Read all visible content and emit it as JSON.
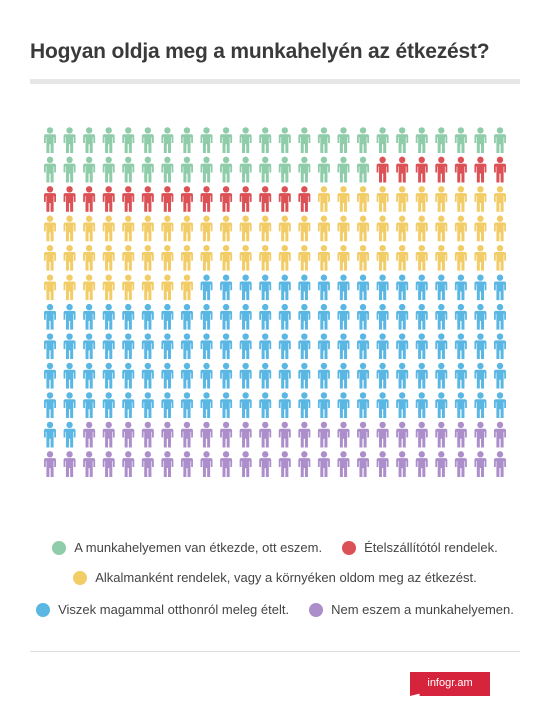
{
  "title": "Hogyan oldja meg a munkahelyén az étkezést?",
  "chart_data": {
    "type": "pictogram",
    "icon": "person-icon",
    "columns": 24,
    "rows": 12,
    "total": 288,
    "series": [
      {
        "name": "A munkahelyemen van étkezde, ott eszem.",
        "count": 41,
        "color": "#8fcca9"
      },
      {
        "name": "Ételszállítótól rendelek.",
        "count": 21,
        "color": "#db5156"
      },
      {
        "name": "Alkalmanként rendelek, vagy a környéken oldom meg az étkezést.",
        "count": 66,
        "color": "#f2cc67"
      },
      {
        "name": "Viszek magammal otthonról meleg ételt.",
        "count": 114,
        "color": "#5ab7e3"
      },
      {
        "name": "Nem eszem a munkahelyemen.",
        "count": 46,
        "color": "#ac8fca"
      }
    ]
  },
  "legend_rows": [
    [
      0,
      1
    ],
    [
      2
    ],
    [
      3,
      4
    ]
  ],
  "logo": "infogr.am"
}
